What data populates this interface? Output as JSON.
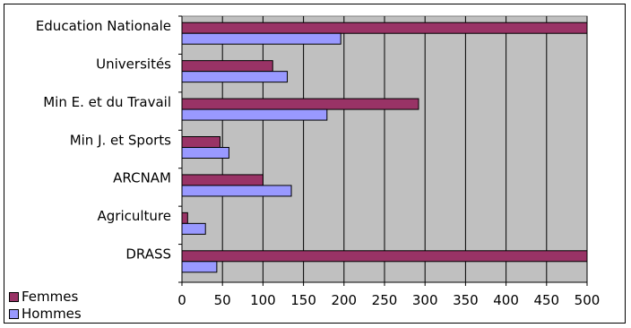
{
  "chart_data": {
    "type": "bar",
    "orientation": "horizontal",
    "categories": [
      "Education Nationale",
      "Universités",
      "Min E. et du Travail",
      "Min J. et Sports",
      "ARCNAM",
      "Agriculture",
      "DRASS"
    ],
    "series": [
      {
        "name": "Femmes",
        "color": "#993366",
        "values": [
          510,
          112,
          292,
          47,
          100,
          7,
          510
        ]
      },
      {
        "name": "Hommes",
        "color": "#9999ff",
        "values": [
          196,
          130,
          179,
          58,
          135,
          29,
          43
        ]
      }
    ],
    "xticks": [
      "0",
      "50",
      "100",
      "150",
      "200",
      "250",
      "300",
      "350",
      "400",
      "450",
      "500"
    ],
    "xlim": [
      0,
      500
    ],
    "plot_background": "#c0c0c0",
    "grid": true,
    "legend_position": "bottom-left"
  }
}
